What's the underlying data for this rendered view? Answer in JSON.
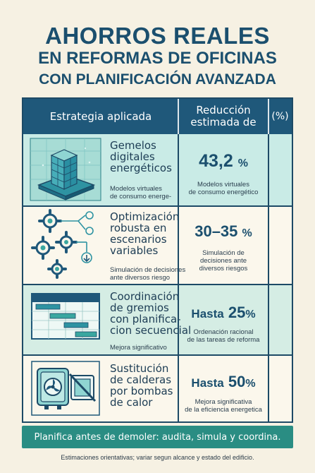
{
  "title": {
    "line1": "AHORROS REALES",
    "line2": "EN REFORMAS DE OFICINAS",
    "line3": "CON PLANIFICACIÓN AVANZADA"
  },
  "table": {
    "headers": {
      "strategy": "Estrategia aplicada",
      "reduction_line1": "Reducción",
      "reduction_line2": "estimada de",
      "percent": "(%)"
    },
    "rows": [
      {
        "icon": "digital-twin-building-icon",
        "title_lines": [
          "Gemelos",
          "digitales",
          "energéticos"
        ],
        "sub_lines": [
          "Modelos virtuales",
          "de consumo energe-"
        ],
        "value": "43,2",
        "value_unit": "%",
        "note_lines": [
          "Modelos virtuales",
          "de consumo energético"
        ],
        "bg": "#c9ebe6"
      },
      {
        "icon": "gears-scenarios-icon",
        "title_lines": [
          "Optimización",
          "robusta en",
          "escenarios",
          "variables"
        ],
        "sub_lines": [
          "Simulación de decisiones",
          "ante diversos riesgo"
        ],
        "value": "30–35",
        "value_unit": "%",
        "note_lines": [
          "Simulación de",
          "decisiones ante",
          "diversos riesgos"
        ],
        "bg": "#fbf7ec"
      },
      {
        "icon": "gantt-schedule-icon",
        "title_lines": [
          "Coordinación",
          "de gremios",
          "con planifica-",
          "cion secuencial"
        ],
        "sub_lines": [
          "Mejora significativo"
        ],
        "value_prefix": "Hasta",
        "value": "25",
        "value_unit": "%",
        "note_lines": [
          "Ordenación racional",
          "de las tareas de reforma"
        ],
        "bg": "#d5ede4"
      },
      {
        "icon": "heat-pump-icon",
        "title_lines": [
          "Sustitución",
          "de calderas",
          "por bombas",
          "de calor"
        ],
        "sub_lines": [],
        "value_prefix": "Hasta",
        "value": "50",
        "value_unit": "%",
        "note_lines": [
          "Mejora significativa",
          "de la eficiencia energetica"
        ],
        "bg": "#fbf7ec"
      }
    ]
  },
  "banner": "Planifica antes de demoler: audita, simula y coordina.",
  "footnote": "Estimaciones orientativas; variar segun alcance y estado del edificio.",
  "colors": {
    "background": "#f6f1e3",
    "header": "#1f587a",
    "title": "#1b4f6e",
    "banner": "#2a8d83",
    "border": "#1d4a66"
  }
}
